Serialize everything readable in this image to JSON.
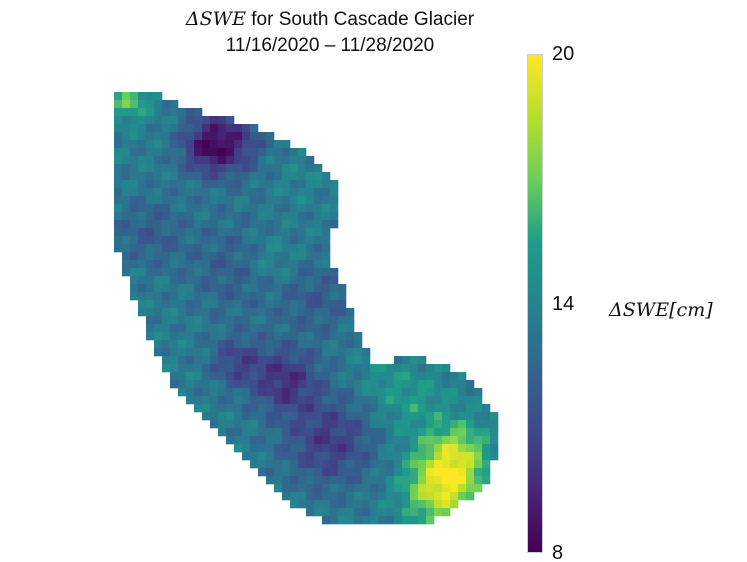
{
  "chart_data": {
    "type": "heatmap",
    "title": {
      "prefix": "ΔSWE",
      "rest": " for South Cascade Glacier",
      "line2": "11/16/2020 – 11/28/2020"
    },
    "colorbar": {
      "label_symbol": "ΔSWE",
      "label_unit": "[cm]",
      "min": 8,
      "max": 20,
      "ticks": [
        {
          "value": 20,
          "label": "20"
        },
        {
          "value": 14,
          "label": "14"
        },
        {
          "value": 8,
          "label": "8"
        }
      ],
      "colormap": "viridis",
      "colors": [
        "#440154",
        "#482777",
        "#3f4a8a",
        "#31678e",
        "#26838f",
        "#1f9d8a",
        "#6cce5a",
        "#b6de2b",
        "#fee825"
      ]
    },
    "grid": {
      "cols": 48,
      "rows": 56,
      "value_range_observed": [
        9.5,
        19.5
      ]
    },
    "grid_on": false,
    "legend_placement": "right"
  }
}
